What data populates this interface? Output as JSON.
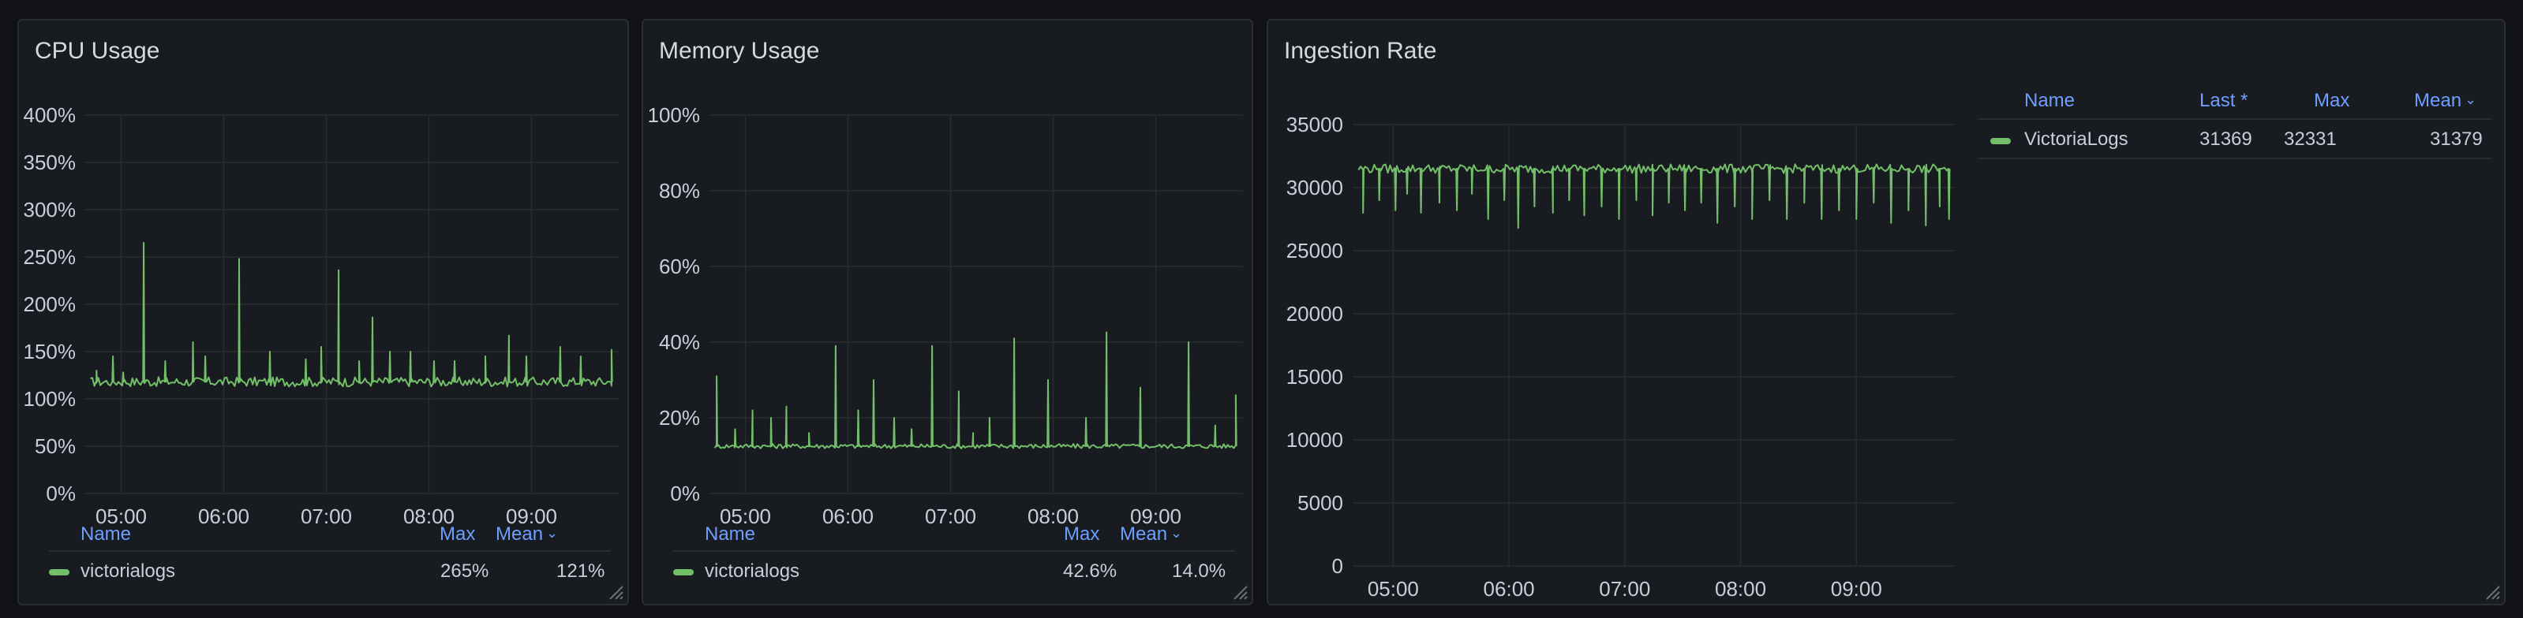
{
  "panels": [
    {
      "title": "CPU Usage",
      "legend": {
        "columns": [
          "Name",
          "Max",
          "Mean"
        ],
        "rows": [
          {
            "name": "victorialogs",
            "max": "265%",
            "mean": "121%"
          }
        ]
      }
    },
    {
      "title": "Memory Usage",
      "legend": {
        "columns": [
          "Name",
          "Max",
          "Mean"
        ],
        "rows": [
          {
            "name": "victorialogs",
            "max": "42.6%",
            "mean": "14.0%"
          }
        ]
      }
    },
    {
      "title": "Ingestion Rate",
      "legend": {
        "columns": [
          "Name",
          "Last *",
          "Max",
          "Mean"
        ],
        "rows": [
          {
            "name": "VictoriaLogs",
            "last": "31369",
            "max": "32331",
            "mean": "31379"
          }
        ]
      }
    }
  ],
  "series_color": "#73bf69",
  "icons": {
    "sort": "chevron-down-icon",
    "resize": "resize-handle-icon"
  },
  "chart_data": [
    {
      "type": "line",
      "title": "CPU Usage",
      "x_ticks": [
        "05:00",
        "06:00",
        "07:00",
        "08:00",
        "09:00"
      ],
      "y_ticks": [
        "0%",
        "50%",
        "100%",
        "150%",
        "200%",
        "250%",
        "300%",
        "350%",
        "400%"
      ],
      "ylim": [
        0,
        400
      ],
      "x_range_hours": [
        4.65,
        9.85
      ],
      "grid": true,
      "series": [
        {
          "name": "victorialogs",
          "baseline": 118,
          "spikes": [
            {
              "t": 4.76,
              "v": 130
            },
            {
              "t": 4.92,
              "v": 145
            },
            {
              "t": 5.02,
              "v": 128
            },
            {
              "t": 5.22,
              "v": 265
            },
            {
              "t": 5.43,
              "v": 140
            },
            {
              "t": 5.7,
              "v": 160
            },
            {
              "t": 5.82,
              "v": 145
            },
            {
              "t": 6.15,
              "v": 248
            },
            {
              "t": 6.45,
              "v": 150
            },
            {
              "t": 6.8,
              "v": 142
            },
            {
              "t": 6.95,
              "v": 155
            },
            {
              "t": 7.12,
              "v": 236
            },
            {
              "t": 7.32,
              "v": 140
            },
            {
              "t": 7.45,
              "v": 186
            },
            {
              "t": 7.62,
              "v": 150
            },
            {
              "t": 7.82,
              "v": 150
            },
            {
              "t": 8.05,
              "v": 140
            },
            {
              "t": 8.25,
              "v": 140
            },
            {
              "t": 8.55,
              "v": 145
            },
            {
              "t": 8.78,
              "v": 167
            },
            {
              "t": 8.95,
              "v": 145
            },
            {
              "t": 9.28,
              "v": 155
            },
            {
              "t": 9.48,
              "v": 145
            },
            {
              "t": 9.78,
              "v": 152
            }
          ]
        }
      ]
    },
    {
      "type": "line",
      "title": "Memory Usage",
      "x_ticks": [
        "05:00",
        "06:00",
        "07:00",
        "08:00",
        "09:00"
      ],
      "y_ticks": [
        "0%",
        "20%",
        "40%",
        "60%",
        "80%",
        "100%"
      ],
      "ylim": [
        0,
        100
      ],
      "x_range_hours": [
        4.65,
        9.85
      ],
      "grid": true,
      "series": [
        {
          "name": "victorialogs",
          "baseline": 12.5,
          "spikes": [
            {
              "t": 4.72,
              "v": 31
            },
            {
              "t": 4.9,
              "v": 17
            },
            {
              "t": 5.07,
              "v": 22
            },
            {
              "t": 5.25,
              "v": 20
            },
            {
              "t": 5.4,
              "v": 23
            },
            {
              "t": 5.62,
              "v": 16
            },
            {
              "t": 5.88,
              "v": 39
            },
            {
              "t": 6.1,
              "v": 22
            },
            {
              "t": 6.25,
              "v": 30
            },
            {
              "t": 6.45,
              "v": 20
            },
            {
              "t": 6.62,
              "v": 17
            },
            {
              "t": 6.82,
              "v": 39
            },
            {
              "t": 7.08,
              "v": 27
            },
            {
              "t": 7.22,
              "v": 16
            },
            {
              "t": 7.38,
              "v": 20
            },
            {
              "t": 7.62,
              "v": 41
            },
            {
              "t": 7.95,
              "v": 30
            },
            {
              "t": 8.32,
              "v": 20
            },
            {
              "t": 8.52,
              "v": 42.6
            },
            {
              "t": 8.85,
              "v": 28
            },
            {
              "t": 9.32,
              "v": 40
            },
            {
              "t": 9.58,
              "v": 18
            },
            {
              "t": 9.78,
              "v": 26
            }
          ]
        }
      ]
    },
    {
      "type": "line",
      "title": "Ingestion Rate",
      "x_ticks": [
        "05:00",
        "06:00",
        "07:00",
        "08:00",
        "09:00"
      ],
      "y_ticks": [
        "0",
        "5000",
        "10000",
        "15000",
        "20000",
        "25000",
        "30000",
        "35000"
      ],
      "ylim": [
        0,
        35000
      ],
      "x_range_hours": [
        4.65,
        9.85
      ],
      "grid": true,
      "series": [
        {
          "name": "VictoriaLogs",
          "baseline": 31500,
          "dips": [
            {
              "t": 4.74,
              "v": 28000
            },
            {
              "t": 4.88,
              "v": 29000
            },
            {
              "t": 5.02,
              "v": 28200
            },
            {
              "t": 5.12,
              "v": 29500
            },
            {
              "t": 5.24,
              "v": 28000
            },
            {
              "t": 5.4,
              "v": 28800
            },
            {
              "t": 5.55,
              "v": 28200
            },
            {
              "t": 5.68,
              "v": 29500
            },
            {
              "t": 5.82,
              "v": 27500
            },
            {
              "t": 5.96,
              "v": 29000
            },
            {
              "t": 6.08,
              "v": 26800
            },
            {
              "t": 6.22,
              "v": 28500
            },
            {
              "t": 6.38,
              "v": 28000
            },
            {
              "t": 6.52,
              "v": 29000
            },
            {
              "t": 6.65,
              "v": 27800
            },
            {
              "t": 6.8,
              "v": 28500
            },
            {
              "t": 6.95,
              "v": 27500
            },
            {
              "t": 7.1,
              "v": 29000
            },
            {
              "t": 7.24,
              "v": 27800
            },
            {
              "t": 7.38,
              "v": 28800
            },
            {
              "t": 7.52,
              "v": 28200
            },
            {
              "t": 7.66,
              "v": 28800
            },
            {
              "t": 7.8,
              "v": 27200
            },
            {
              "t": 7.95,
              "v": 28500
            },
            {
              "t": 8.1,
              "v": 27500
            },
            {
              "t": 8.25,
              "v": 29000
            },
            {
              "t": 8.4,
              "v": 27500
            },
            {
              "t": 8.55,
              "v": 28800
            },
            {
              "t": 8.7,
              "v": 27500
            },
            {
              "t": 8.85,
              "v": 28200
            },
            {
              "t": 9.0,
              "v": 27500
            },
            {
              "t": 9.15,
              "v": 28800
            },
            {
              "t": 9.3,
              "v": 27200
            },
            {
              "t": 9.45,
              "v": 28200
            },
            {
              "t": 9.6,
              "v": 27000
            },
            {
              "t": 9.72,
              "v": 28500
            },
            {
              "t": 9.8,
              "v": 27500
            }
          ]
        }
      ]
    }
  ]
}
